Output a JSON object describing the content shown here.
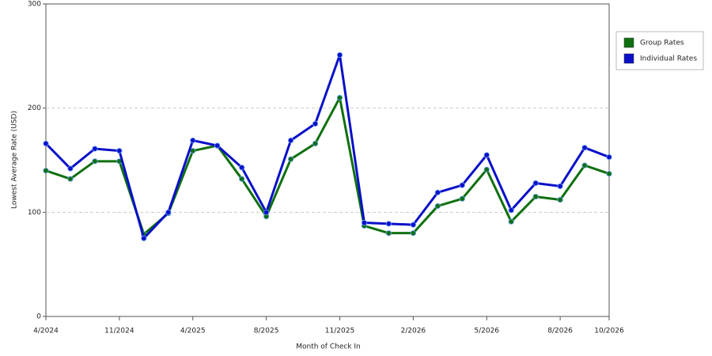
{
  "chart_data": {
    "type": "line",
    "x_label": "Month of Check In",
    "y_label": "Lowest Average Rate (USD)",
    "categories": [
      "4/2024",
      null,
      null,
      "11/2024",
      null,
      null,
      "4/2025",
      null,
      null,
      "8/2025",
      null,
      null,
      "11/2025",
      null,
      null,
      "2/2026",
      null,
      null,
      "5/2026",
      null,
      null,
      "8/2026",
      null,
      "10/2026"
    ],
    "series": [
      {
        "name": "Group Rates",
        "color": "#107010",
        "values": [
          140,
          132,
          149,
          149,
          79,
          99,
          159,
          164,
          132,
          96,
          151,
          166,
          210,
          87,
          80,
          80,
          106,
          113,
          141,
          91,
          115,
          112,
          145,
          137
        ]
      },
      {
        "name": "Individual Rates",
        "color": "#0a10c8",
        "values": [
          166,
          142,
          161,
          159,
          75,
          100,
          169,
          164,
          143,
          100,
          169,
          185,
          251,
          90,
          89,
          88,
          119,
          126,
          155,
          102,
          128,
          125,
          162,
          153
        ]
      }
    ],
    "ylim": [
      0,
      300
    ],
    "yticks": [
      0,
      100,
      200,
      300
    ],
    "grid": true,
    "legend": "right"
  }
}
